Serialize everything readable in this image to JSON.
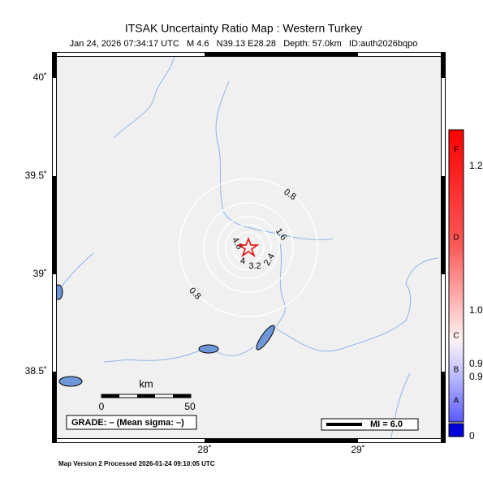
{
  "title": "ITSAK Uncertainty Ratio Map : Western Turkey",
  "subtitle": "Jan 24, 2026 07:34:17 UTC   M 4.6   N39.13 E28.28   Depth: 57.0km   ID:auth2026bqpo",
  "lat_labels": [
    "40˚",
    "39.5˚",
    "39˚",
    "38.5˚"
  ],
  "lon_labels": [
    "28˚",
    "29˚"
  ],
  "contour_labels": [
    "0.8",
    "1.6",
    "4.8",
    "4",
    "3.2",
    "2.4",
    "0.8"
  ],
  "colorbar": {
    "grades": [
      "F",
      "D",
      "C",
      "B",
      "A"
    ],
    "values": [
      "1.2",
      "1.0",
      "0.9",
      "0.9",
      "0"
    ]
  },
  "scale_bar": {
    "unit": "km",
    "labels": [
      "0",
      "50"
    ]
  },
  "grade_box": "GRADE: – (Mean sigma: –)",
  "mi_legend": "MI = 6.0",
  "footer": "Map Version 2 Processed 2026-01-24 09:10:05 UTC"
}
